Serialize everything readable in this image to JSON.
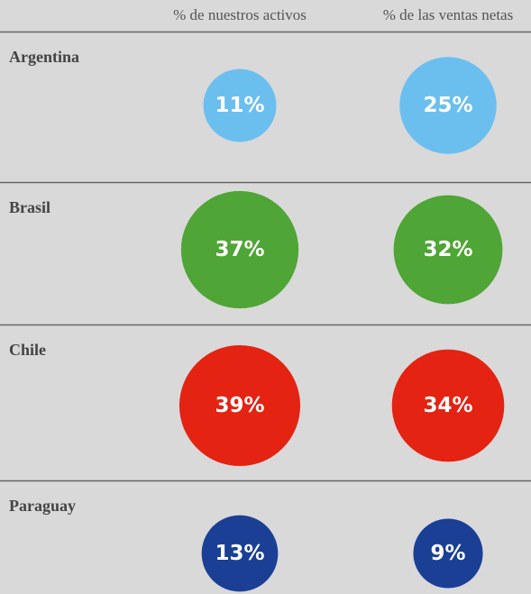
{
  "chart_data": {
    "type": "bubble",
    "categories": [
      "Argentina",
      "Brasil",
      "Chile",
      "Paraguay"
    ],
    "colors": [
      "#6bbfef",
      "#4fa535",
      "#e42313",
      "#1a3f95"
    ],
    "series": [
      {
        "name": "% de nuestros activos",
        "values": [
          11,
          37,
          39,
          13
        ],
        "value_labels": [
          "11%",
          "37%",
          "39%",
          "13%"
        ]
      },
      {
        "name": "% de las ventas netas",
        "values": [
          25,
          32,
          34,
          9
        ],
        "value_labels": [
          "25%",
          "32%",
          "34%",
          "9%"
        ]
      }
    ]
  }
}
